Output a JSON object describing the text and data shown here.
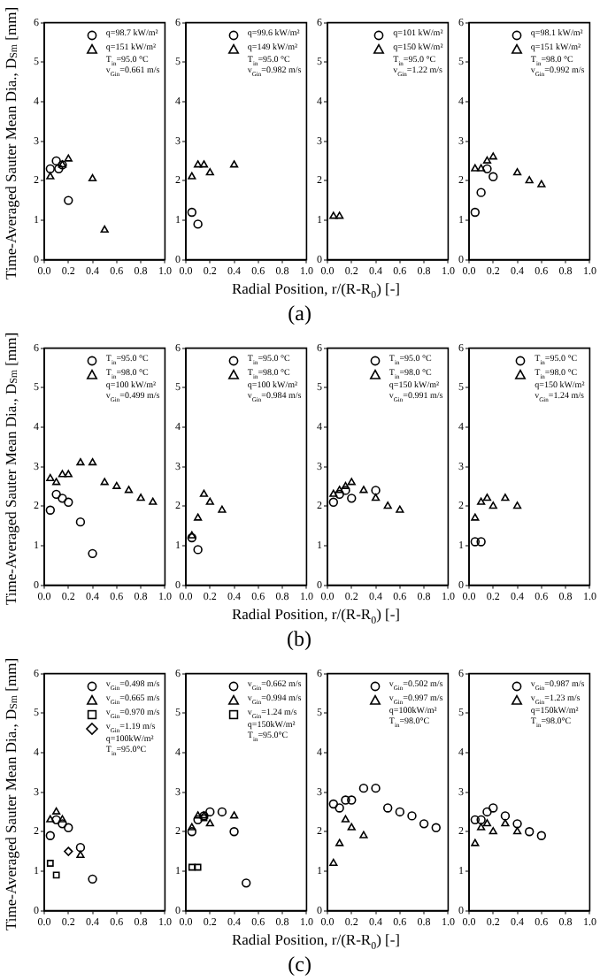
{
  "chart_data": [
    {
      "type": "scatter",
      "xlabel": "Radial Position,  r/(R-R$_{0}$)  [-]",
      "ylabel": "Time-Averaged Sauter Mean Dia.,  D$_{Sm}$  [mm]",
      "legend": "top right",
      "grid": false,
      "xlim": [
        0,
        1
      ],
      "ylim": [
        0,
        6
      ],
      "xticks": [
        {
          "value": 0,
          "label": "0.0"
        },
        {
          "value": 0.2,
          "label": "0.2"
        },
        {
          "value": 0.4,
          "label": "0.4"
        },
        {
          "value": 0.6,
          "label": "0.6"
        },
        {
          "value": 0.8,
          "label": "0.8"
        },
        {
          "value": 1,
          "label": "1.0"
        }
      ],
      "yticks": [
        0,
        1,
        2,
        3,
        4,
        5,
        6
      ],
      "annotations": [
        "T$_{in}$=95.0 °C",
        "v$_{Gin}$=0.661 m/s"
      ],
      "series": [
        {
          "name": "q=98.7 kW/m²",
          "color": "#000000",
          "marker": "circle",
          "x": [
            0.05,
            0.1,
            0.12,
            0.15,
            0.2
          ],
          "values": [
            2.3,
            2.5,
            2.3,
            2.4,
            1.5
          ]
        },
        {
          "name": "q=151 kW/m²",
          "color": "#000000",
          "marker": "triangle",
          "x": [
            0.05,
            0.15,
            0.2,
            0.4,
            0.5
          ],
          "values": [
            2.1,
            2.4,
            2.55,
            2.05,
            0.75
          ]
        }
      ]
    },
    {
      "type": "scatter",
      "title": "(a)",
      "legend": "top right",
      "grid": false,
      "xlim": [
        0,
        1
      ],
      "ylim": [
        0,
        6
      ],
      "xticks": [
        {
          "value": 0,
          "label": "0.0"
        },
        {
          "value": 0.2,
          "label": "0.2"
        },
        {
          "value": 0.4,
          "label": "0.4"
        },
        {
          "value": 0.6,
          "label": "0.6"
        },
        {
          "value": 0.8,
          "label": "0.8"
        },
        {
          "value": 1,
          "label": "1.0"
        }
      ],
      "yticks": [
        0,
        1,
        2,
        3,
        4,
        5,
        6
      ],
      "annotations": [
        "T$_{in}$=95.0 °C",
        "v$_{Gin}$=0.982 m/s"
      ],
      "series": [
        {
          "name": "q=99.6 kW/m²",
          "color": "#000000",
          "marker": "circle",
          "x": [
            0.05,
            0.1
          ],
          "values": [
            1.2,
            0.9
          ]
        },
        {
          "name": "q=149 kW/m²",
          "color": "#000000",
          "marker": "triangle",
          "x": [
            0.05,
            0.1,
            0.15,
            0.2,
            0.4
          ],
          "values": [
            2.1,
            2.4,
            2.4,
            2.2,
            2.4
          ]
        }
      ]
    },
    {
      "type": "scatter",
      "legend": "top right",
      "grid": false,
      "xlim": [
        0,
        1
      ],
      "ylim": [
        0,
        6
      ],
      "xticks": [
        {
          "value": 0,
          "label": "0.0"
        },
        {
          "value": 0.2,
          "label": "0.2"
        },
        {
          "value": 0.4,
          "label": "0.4"
        },
        {
          "value": 0.6,
          "label": "0.6"
        },
        {
          "value": 0.8,
          "label": "0.8"
        },
        {
          "value": 1,
          "label": "1.0"
        }
      ],
      "yticks": [
        0,
        1,
        2,
        3,
        4,
        5,
        6
      ],
      "annotations": [
        "T$_{in}$=95.0 °C",
        "v$_{Gin}$=1.22 m/s"
      ],
      "series": [
        {
          "name": "q=101 kW/m²",
          "color": "#000000",
          "marker": "circle"
        },
        {
          "name": "q=150 kW/m²",
          "color": "#000000",
          "marker": "triangle",
          "x": [
            0.05,
            0.1
          ],
          "values": [
            1.1,
            1.1
          ]
        }
      ]
    },
    {
      "type": "scatter",
      "legend": "top right",
      "grid": false,
      "xlim": [
        0,
        1
      ],
      "ylim": [
        0,
        6
      ],
      "xticks": [
        {
          "value": 0,
          "label": "0.0"
        },
        {
          "value": 0.2,
          "label": "0.2"
        },
        {
          "value": 0.4,
          "label": "0.4"
        },
        {
          "value": 0.6,
          "label": "0.6"
        },
        {
          "value": 0.8,
          "label": "0.8"
        },
        {
          "value": 1,
          "label": "1.0"
        }
      ],
      "yticks": [
        0,
        1,
        2,
        3,
        4,
        5,
        6
      ],
      "annotations": [
        "T$_{in}$=98.0 °C",
        "v$_{Gin}$=0.992 m/s"
      ],
      "series": [
        {
          "name": "q=98.1 kW/m²",
          "color": "#000000",
          "marker": "circle",
          "x": [
            0.05,
            0.1,
            0.15,
            0.2
          ],
          "values": [
            1.2,
            1.7,
            2.3,
            2.1
          ]
        },
        {
          "name": "q=151 kW/m²",
          "color": "#000000",
          "marker": "triangle",
          "x": [
            0.05,
            0.1,
            0.15,
            0.2,
            0.4,
            0.5,
            0.6
          ],
          "values": [
            2.3,
            2.3,
            2.5,
            2.6,
            2.2,
            2.0,
            1.9
          ]
        }
      ]
    },
    {
      "type": "scatter",
      "xlabel": "Radial Position,  r/(R-R$_{0}$)  [-]",
      "ylabel": "Time-Averaged Sauter Mean Dia.,  D$_{Sm}$  [mm]",
      "legend": "top right",
      "grid": false,
      "xlim": [
        0,
        1
      ],
      "ylim": [
        0,
        6
      ],
      "xticks": [
        {
          "value": 0,
          "label": "0.0"
        },
        {
          "value": 0.2,
          "label": "0.2"
        },
        {
          "value": 0.4,
          "label": "0.4"
        },
        {
          "value": 0.6,
          "label": "0.6"
        },
        {
          "value": 0.8,
          "label": "0.8"
        },
        {
          "value": 1,
          "label": "1.0"
        }
      ],
      "yticks": [
        0,
        1,
        2,
        3,
        4,
        5,
        6
      ],
      "annotations": [
        "q=100 kW/m²",
        "v$_{Gin}$=0.499 m/s"
      ],
      "series": [
        {
          "name": "T$_{in}$=95.0 °C",
          "color": "#000000",
          "marker": "circle",
          "x": [
            0.05,
            0.1,
            0.15,
            0.2,
            0.3,
            0.4
          ],
          "values": [
            1.9,
            2.3,
            2.2,
            2.1,
            1.6,
            0.8
          ]
        },
        {
          "name": "T$_{in}$=98.0 °C",
          "color": "#000000",
          "marker": "triangle",
          "x": [
            0.05,
            0.1,
            0.15,
            0.2,
            0.3,
            0.4,
            0.5,
            0.6,
            0.7,
            0.8,
            0.9
          ],
          "values": [
            2.7,
            2.6,
            2.8,
            2.8,
            3.1,
            3.1,
            2.6,
            2.5,
            2.4,
            2.2,
            2.1
          ]
        }
      ]
    },
    {
      "type": "scatter",
      "title": "(b)",
      "legend": "top right",
      "grid": false,
      "xlim": [
        0,
        1
      ],
      "ylim": [
        0,
        6
      ],
      "xticks": [
        {
          "value": 0,
          "label": "0.0"
        },
        {
          "value": 0.2,
          "label": "0.2"
        },
        {
          "value": 0.4,
          "label": "0.4"
        },
        {
          "value": 0.6,
          "label": "0.6"
        },
        {
          "value": 0.8,
          "label": "0.8"
        },
        {
          "value": 1,
          "label": "1.0"
        }
      ],
      "yticks": [
        0,
        1,
        2,
        3,
        4,
        5,
        6
      ],
      "annotations": [
        "q=100 kW/m²",
        "v$_{Gin}$=0.984 m/s"
      ],
      "series": [
        {
          "name": "T$_{in}$=95.0 °C",
          "color": "#000000",
          "marker": "circle",
          "x": [
            0.05,
            0.1
          ],
          "values": [
            1.2,
            0.9
          ]
        },
        {
          "name": "T$_{in}$=98.0 °C",
          "color": "#000000",
          "marker": "triangle",
          "x": [
            0.05,
            0.1,
            0.15,
            0.2,
            0.3
          ],
          "values": [
            1.25,
            1.7,
            2.3,
            2.1,
            1.9
          ]
        }
      ]
    },
    {
      "type": "scatter",
      "legend": "top right",
      "grid": false,
      "xlim": [
        0,
        1
      ],
      "ylim": [
        0,
        6
      ],
      "xticks": [
        {
          "value": 0,
          "label": "0.0"
        },
        {
          "value": 0.2,
          "label": "0.2"
        },
        {
          "value": 0.4,
          "label": "0.4"
        },
        {
          "value": 0.6,
          "label": "0.6"
        },
        {
          "value": 0.8,
          "label": "0.8"
        },
        {
          "value": 1,
          "label": "1.0"
        }
      ],
      "yticks": [
        0,
        1,
        2,
        3,
        4,
        5,
        6
      ],
      "annotations": [
        "q=150 kW/m²",
        "v$_{Gin}$=0.991 m/s"
      ],
      "series": [
        {
          "name": "T$_{in}$=95.0 °C",
          "color": "#000000",
          "marker": "circle",
          "x": [
            0.05,
            0.1,
            0.15,
            0.2,
            0.4
          ],
          "values": [
            2.1,
            2.3,
            2.4,
            2.2,
            2.4
          ]
        },
        {
          "name": "T$_{in}$=98.0 °C",
          "color": "#000000",
          "marker": "triangle",
          "x": [
            0.05,
            0.1,
            0.15,
            0.2,
            0.3,
            0.4,
            0.5,
            0.6
          ],
          "values": [
            2.3,
            2.4,
            2.5,
            2.6,
            2.4,
            2.2,
            2.0,
            1.9
          ]
        }
      ]
    },
    {
      "type": "scatter",
      "legend": "top right",
      "grid": false,
      "xlim": [
        0,
        1
      ],
      "ylim": [
        0,
        6
      ],
      "xticks": [
        {
          "value": 0,
          "label": "0.0"
        },
        {
          "value": 0.2,
          "label": "0.2"
        },
        {
          "value": 0.4,
          "label": "0.4"
        },
        {
          "value": 0.6,
          "label": "0.6"
        },
        {
          "value": 0.8,
          "label": "0.8"
        },
        {
          "value": 1,
          "label": "1.0"
        }
      ],
      "yticks": [
        0,
        1,
        2,
        3,
        4,
        5,
        6
      ],
      "annotations": [
        "q=150 kW/m²",
        "v$_{Gin}$=1.24 m/s"
      ],
      "series": [
        {
          "name": "T$_{in}$=95.0 °C",
          "color": "#000000",
          "marker": "circle",
          "x": [
            0.05,
            0.1
          ],
          "values": [
            1.1,
            1.1
          ]
        },
        {
          "name": "T$_{in}$=98.0 °C",
          "color": "#000000",
          "marker": "triangle",
          "x": [
            0.05,
            0.1,
            0.15,
            0.2,
            0.3,
            0.4
          ],
          "values": [
            1.7,
            2.1,
            2.2,
            2.0,
            2.2,
            2.0
          ]
        }
      ]
    },
    {
      "type": "scatter",
      "xlabel": "Radial Position,  r/(R-R$_{0}$)  [-]",
      "ylabel": "Time-Averaged Sauter Mean Dia.,  D$_{Sm}$  [mm]",
      "legend": "top right",
      "grid": false,
      "xlim": [
        0,
        1
      ],
      "ylim": [
        0,
        6
      ],
      "xticks": [
        {
          "value": 0,
          "label": "0.0"
        },
        {
          "value": 0.2,
          "label": "0.2"
        },
        {
          "value": 0.4,
          "label": "0.4"
        },
        {
          "value": 0.6,
          "label": "0.6"
        },
        {
          "value": 0.8,
          "label": "0.8"
        },
        {
          "value": 1,
          "label": "1.0"
        }
      ],
      "yticks": [
        0,
        1,
        2,
        3,
        4,
        5,
        6
      ],
      "annotations": [
        "q=100kW/m²",
        "T$_{in}$=95.0°C"
      ],
      "series": [
        {
          "name": "v$_{Gin}$=0.498 m/s",
          "color": "#000000",
          "marker": "circle",
          "x": [
            0.05,
            0.1,
            0.15,
            0.2,
            0.3,
            0.4
          ],
          "values": [
            1.9,
            2.3,
            2.2,
            2.1,
            1.6,
            0.8
          ]
        },
        {
          "name": "v$_{Gin}$=0.665 m/s",
          "color": "#000000",
          "marker": "triangle",
          "x": [
            0.05,
            0.1,
            0.15,
            0.3
          ],
          "values": [
            2.3,
            2.5,
            2.3,
            1.4
          ]
        },
        {
          "name": "v$_{Gin}$=0.970 m/s",
          "color": "#000000",
          "marker": "square",
          "x": [
            0.05,
            0.1
          ],
          "values": [
            1.2,
            0.9
          ]
        },
        {
          "name": "v$_{Gin}$=1.19 m/s",
          "color": "#000000",
          "marker": "diamond",
          "x": [
            0.2
          ],
          "values": [
            1.5
          ]
        }
      ]
    },
    {
      "type": "scatter",
      "title": "(c)",
      "legend": "top right",
      "grid": false,
      "xlim": [
        0,
        1
      ],
      "ylim": [
        0,
        6
      ],
      "xticks": [
        {
          "value": 0,
          "label": "0.0"
        },
        {
          "value": 0.2,
          "label": "0.2"
        },
        {
          "value": 0.4,
          "label": "0.4"
        },
        {
          "value": 0.6,
          "label": "0.6"
        },
        {
          "value": 0.8,
          "label": "0.8"
        },
        {
          "value": 1,
          "label": "1.0"
        }
      ],
      "yticks": [
        0,
        1,
        2,
        3,
        4,
        5,
        6
      ],
      "annotations": [
        "q=150kW/m²",
        "T$_{in}$=95.0°C"
      ],
      "series": [
        {
          "name": "v$_{Gin}$=0.662 m/s",
          "color": "#000000",
          "marker": "circle",
          "x": [
            0.05,
            0.1,
            0.15,
            0.2,
            0.3,
            0.4,
            0.5
          ],
          "values": [
            2.0,
            2.3,
            2.4,
            2.5,
            2.5,
            2.0,
            0.7
          ]
        },
        {
          "name": "v$_{Gin}$=0.994 m/s",
          "color": "#000000",
          "marker": "triangle",
          "x": [
            0.05,
            0.1,
            0.15,
            0.2,
            0.4
          ],
          "values": [
            2.1,
            2.4,
            2.4,
            2.2,
            2.4
          ]
        },
        {
          "name": "v$_{Gin}$=1.24 m/s",
          "color": "#000000",
          "marker": "square",
          "x": [
            0.05,
            0.1,
            0.15
          ],
          "values": [
            1.1,
            1.1,
            2.35
          ]
        }
      ]
    },
    {
      "type": "scatter",
      "legend": "top right",
      "grid": false,
      "xlim": [
        0,
        1
      ],
      "ylim": [
        0,
        6
      ],
      "xticks": [
        {
          "value": 0,
          "label": "0.0"
        },
        {
          "value": 0.2,
          "label": "0.2"
        },
        {
          "value": 0.4,
          "label": "0.4"
        },
        {
          "value": 0.6,
          "label": "0.6"
        },
        {
          "value": 0.8,
          "label": "0.8"
        },
        {
          "value": 1,
          "label": "1.0"
        }
      ],
      "yticks": [
        0,
        1,
        2,
        3,
        4,
        5,
        6
      ],
      "annotations": [
        "q=100kW/m²",
        "T$_{in}$=98.0°C"
      ],
      "series": [
        {
          "name": "v$_{Gin}$=0.502 m/s",
          "color": "#000000",
          "marker": "circle",
          "x": [
            0.05,
            0.1,
            0.15,
            0.2,
            0.3,
            0.4,
            0.5,
            0.6,
            0.7,
            0.8,
            0.9
          ],
          "values": [
            2.7,
            2.6,
            2.8,
            2.8,
            3.1,
            3.1,
            2.6,
            2.5,
            2.4,
            2.2,
            2.1
          ]
        },
        {
          "name": "v$_{Gin}$=0.997 m/s",
          "color": "#000000",
          "marker": "triangle",
          "x": [
            0.05,
            0.1,
            0.15,
            0.2,
            0.3
          ],
          "values": [
            1.2,
            1.7,
            2.3,
            2.1,
            1.9
          ]
        }
      ]
    },
    {
      "type": "scatter",
      "legend": "top right",
      "grid": false,
      "xlim": [
        0,
        1
      ],
      "ylim": [
        0,
        6
      ],
      "xticks": [
        {
          "value": 0,
          "label": "0.0"
        },
        {
          "value": 0.2,
          "label": "0.2"
        },
        {
          "value": 0.4,
          "label": "0.4"
        },
        {
          "value": 0.6,
          "label": "0.6"
        },
        {
          "value": 0.8,
          "label": "0.8"
        },
        {
          "value": 1,
          "label": "1.0"
        }
      ],
      "yticks": [
        0,
        1,
        2,
        3,
        4,
        5,
        6
      ],
      "annotations": [
        "q=150kW/m²",
        "T$_{in}$=98.0°C"
      ],
      "series": [
        {
          "name": "v$_{Gin}$=0.987 m/s",
          "color": "#000000",
          "marker": "circle",
          "x": [
            0.05,
            0.1,
            0.15,
            0.2,
            0.3,
            0.4,
            0.5,
            0.6
          ],
          "values": [
            2.3,
            2.3,
            2.5,
            2.6,
            2.4,
            2.2,
            2.0,
            1.9
          ]
        },
        {
          "name": "v$_{Gin}$=1.23 m/s",
          "color": "#000000",
          "marker": "triangle",
          "x": [
            0.05,
            0.1,
            0.15,
            0.2,
            0.3,
            0.4
          ],
          "values": [
            1.7,
            2.1,
            2.2,
            2.0,
            2.2,
            2.0
          ]
        }
      ]
    }
  ]
}
